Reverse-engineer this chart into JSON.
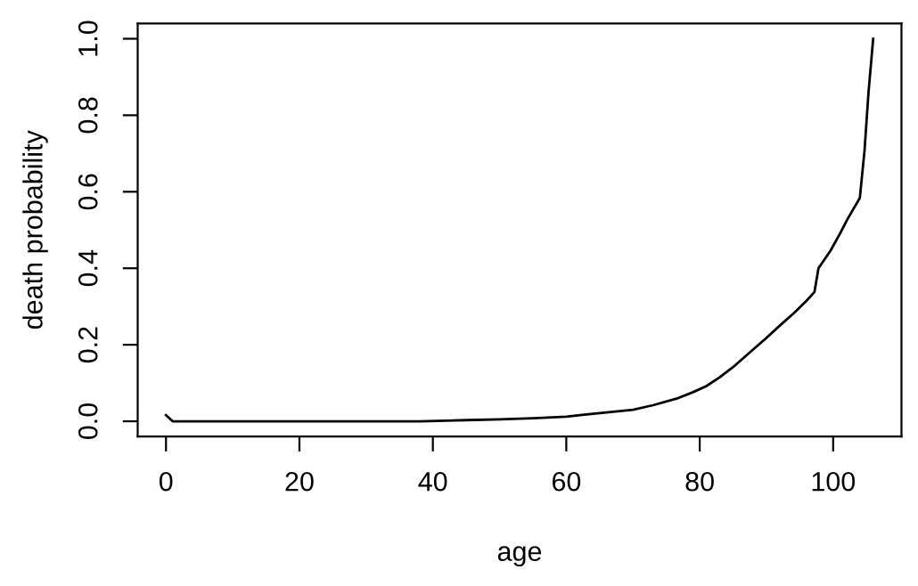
{
  "chart_data": {
    "type": "line",
    "xlabel": "age",
    "ylabel": "death probability",
    "x": [
      0,
      1,
      10,
      20,
      30,
      38,
      45,
      50,
      55,
      60,
      63,
      66,
      70,
      73,
      76.5,
      79,
      81,
      83,
      85.3,
      87.5,
      89.8,
      92,
      94.2,
      96,
      97.2,
      97.8,
      99.6,
      101,
      102.2,
      104,
      104.7,
      105.3,
      106
    ],
    "series": [
      {
        "color": "#000000",
        "values": [
          0.016,
          0.0,
          0.0,
          0.0,
          0.0,
          0.0,
          0.003,
          0.005,
          0.008,
          0.012,
          0.018,
          0.023,
          0.03,
          0.042,
          0.059,
          0.076,
          0.092,
          0.115,
          0.146,
          0.18,
          0.215,
          0.25,
          0.284,
          0.315,
          0.338,
          0.4,
          0.446,
          0.49,
          0.53,
          0.584,
          0.707,
          0.86,
          1.0
        ]
      }
    ],
    "xlim": [
      -4.24,
      110.24
    ],
    "xticks": [
      0,
      20,
      40,
      60,
      80,
      100
    ],
    "ylim": [
      -0.04,
      1.04
    ],
    "yticks": [
      {
        "value": 0,
        "label": "0.0"
      },
      {
        "value": 0.2,
        "label": "0.2"
      },
      {
        "value": 0.4,
        "label": "0.4"
      },
      {
        "value": 0.6,
        "label": "0.6"
      },
      {
        "value": 0.8,
        "label": "0.8"
      },
      {
        "value": 1,
        "label": "1.0"
      }
    ],
    "grid": false,
    "marker": "none",
    "line_style": "solid"
  }
}
